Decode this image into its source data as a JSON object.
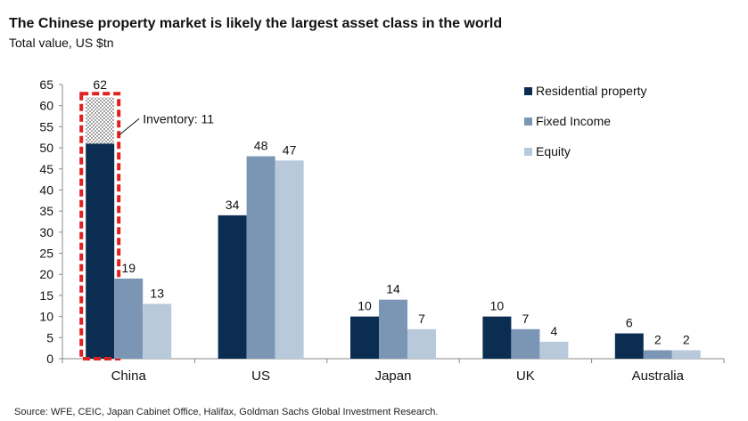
{
  "title": "The Chinese property market is likely the largest asset class in the world",
  "subtitle": "Total value, US $tn",
  "source": "Source: WFE, CEIC, Japan Cabinet Office, Halifax, Goldman Sachs Global Investment Research.",
  "colors": {
    "residential": "#0c2d52",
    "fixed_income": "#7b96b4",
    "equity": "#b9c9dc",
    "highlight": "#e02020"
  },
  "chart_data": {
    "type": "bar",
    "categories": [
      "China",
      "US",
      "Japan",
      "UK",
      "Australia"
    ],
    "series": [
      {
        "name": "Residential property",
        "values": [
          62,
          34,
          10,
          10,
          6
        ]
      },
      {
        "name": "Fixed Income",
        "values": [
          19,
          48,
          14,
          7,
          2
        ]
      },
      {
        "name": "Equity",
        "values": [
          13,
          47,
          7,
          4,
          2
        ]
      }
    ],
    "ylim": [
      0,
      65
    ],
    "yticks": [
      0,
      5,
      10,
      15,
      20,
      25,
      30,
      35,
      40,
      45,
      50,
      55,
      60,
      65
    ],
    "legend_position": "top-right",
    "grid": false,
    "annotation": {
      "text": "Inventory: 11",
      "category": "China",
      "series": "Residential property",
      "value": 11
    }
  }
}
